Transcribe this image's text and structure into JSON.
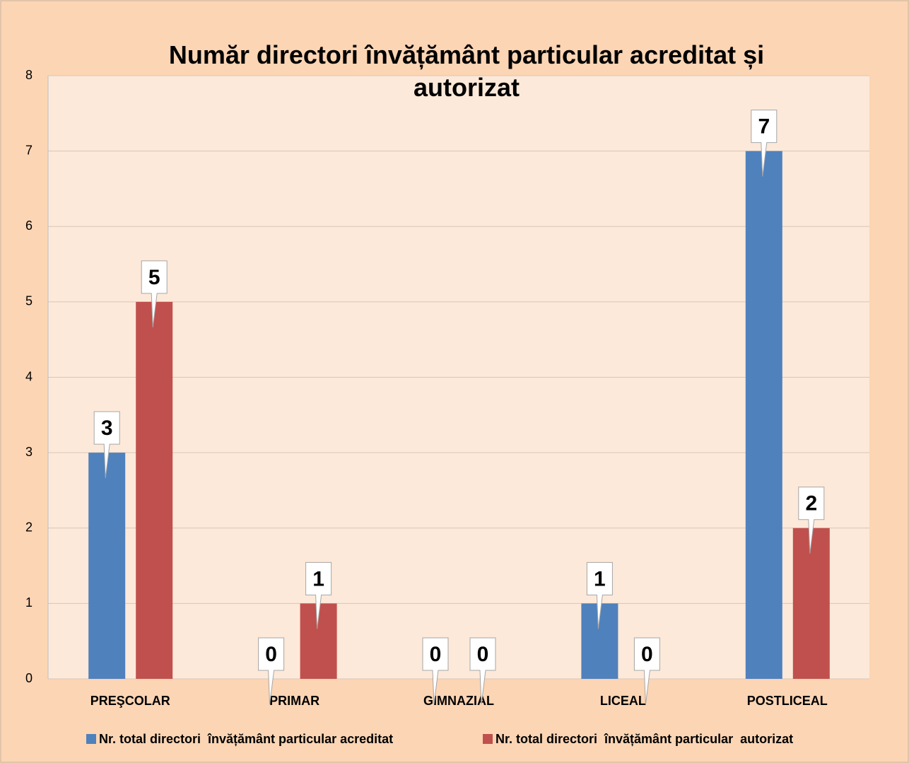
{
  "chart_data": {
    "type": "bar",
    "title": "Număr directori învățământ particular acreditat și autorizat",
    "categories": [
      "PREŞCOLAR",
      "PRIMAR",
      "GIMNAZIAL",
      "LICEAL",
      "POSTLICEAL"
    ],
    "series": [
      {
        "name": "Nr. total directori  învățământ particular acreditat",
        "color": "#4f81bd",
        "values": [
          3,
          0,
          0,
          1,
          7
        ]
      },
      {
        "name": "Nr. total directori  învățământ particular  autorizat",
        "color": "#c0504d",
        "values": [
          5,
          1,
          0,
          0,
          2
        ]
      }
    ],
    "ylim": [
      0,
      8
    ],
    "yticks": [
      0,
      1,
      2,
      3,
      4,
      5,
      6,
      7,
      8
    ],
    "grid": true,
    "legend": "bottom"
  }
}
